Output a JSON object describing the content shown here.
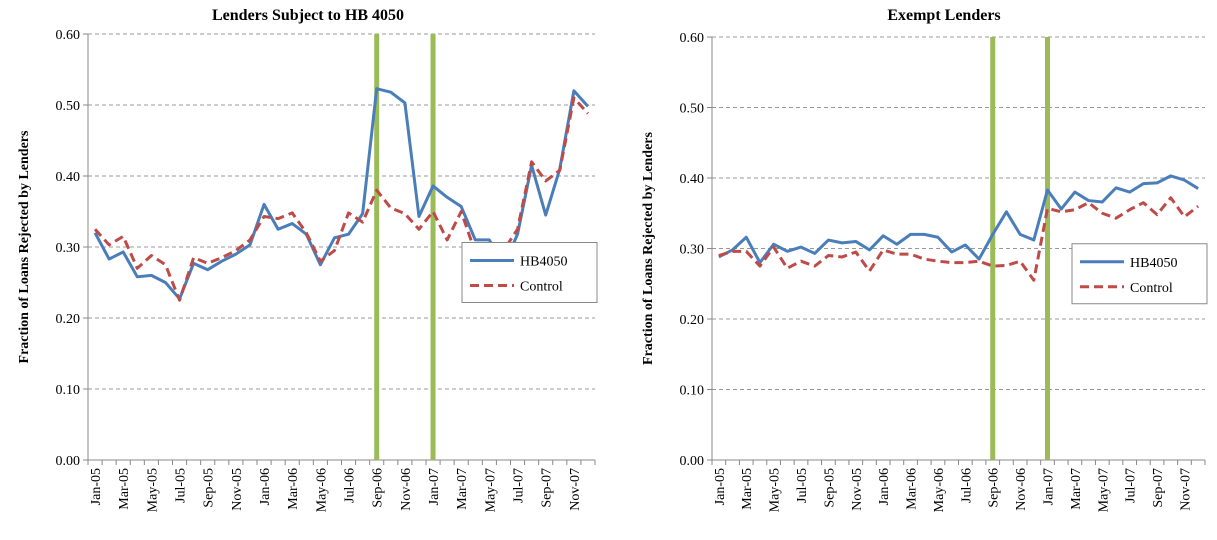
{
  "chart_data": [
    {
      "type": "line",
      "title": "Lenders Subject to HB 4050",
      "y_label": "Fraction of Loans Rejected by Lenders",
      "categories": [
        "Jan-05",
        null,
        "Mar-05",
        null,
        "May-05",
        null,
        "Jul-05",
        null,
        "Sep-05",
        null,
        "Nov-05",
        null,
        "Jan-06",
        null,
        "Mar-06",
        null,
        "May-06",
        null,
        "Jul-06",
        null,
        "Sep-06",
        null,
        "Nov-06",
        null,
        "Jan-07",
        null,
        "Mar-07",
        null,
        "May-07",
        null,
        "Jul-07",
        null,
        "Sep-07",
        null,
        "Nov-07",
        null
      ],
      "series": [
        {
          "name": "HB4050",
          "color": "#4a7ebb",
          "dash": false,
          "values": [
            0.32,
            0.283,
            0.293,
            0.258,
            0.26,
            0.25,
            0.227,
            0.277,
            0.268,
            0.28,
            0.29,
            0.303,
            0.36,
            0.325,
            0.333,
            0.318,
            0.275,
            0.313,
            0.318,
            0.347,
            0.523,
            0.518,
            0.503,
            0.343,
            0.386,
            0.37,
            0.357,
            0.31,
            0.31,
            0.273,
            0.318,
            0.415,
            0.345,
            0.41,
            0.52,
            0.498
          ]
        },
        {
          "name": "Control",
          "color": "#be4b48",
          "dash": true,
          "values": [
            0.325,
            0.303,
            0.315,
            0.27,
            0.288,
            0.275,
            0.225,
            0.285,
            0.277,
            0.285,
            0.295,
            0.31,
            0.343,
            0.34,
            0.348,
            0.32,
            0.28,
            0.295,
            0.348,
            0.335,
            0.38,
            0.355,
            0.347,
            0.325,
            0.35,
            0.31,
            0.35,
            0.292,
            0.295,
            0.295,
            0.325,
            0.42,
            0.393,
            0.408,
            0.51,
            0.488
          ]
        }
      ],
      "event_lines": [
        20,
        24
      ],
      "event_color": "#9bbb59",
      "ylim": [
        0,
        0.6
      ],
      "yticks": [
        {
          "value": 0,
          "label": "0.00"
        },
        {
          "value": 0.1,
          "label": "0.10"
        },
        {
          "value": 0.2,
          "label": "0.20"
        },
        {
          "value": 0.3,
          "label": "0.30"
        },
        {
          "value": 0.4,
          "label": "0.40"
        },
        {
          "value": 0.5,
          "label": "0.50"
        },
        {
          "value": 0.6,
          "label": "0.60"
        }
      ],
      "grid": true,
      "legend": "right"
    },
    {
      "type": "line",
      "title": "Exempt Lenders",
      "y_label": "Fraction of Loans Rejected by Lenders",
      "categories": [
        "Jan-05",
        null,
        "Mar-05",
        null,
        "May-05",
        null,
        "Jul-05",
        null,
        "Sep-05",
        null,
        "Nov-05",
        null,
        "Jan-06",
        null,
        "Mar-06",
        null,
        "May-06",
        null,
        "Jul-06",
        null,
        "Sep-06",
        null,
        "Nov-06",
        null,
        "Jan-07",
        null,
        "Mar-07",
        null,
        "May-07",
        null,
        "Jul-07",
        null,
        "Sep-07",
        null,
        "Nov-07",
        null
      ],
      "series": [
        {
          "name": "HB4050",
          "color": "#4a7ebb",
          "dash": false,
          "values": [
            0.288,
            0.298,
            0.316,
            0.28,
            0.306,
            0.296,
            0.302,
            0.293,
            0.312,
            0.308,
            0.31,
            0.298,
            0.318,
            0.306,
            0.32,
            0.32,
            0.316,
            0.295,
            0.305,
            0.285,
            0.32,
            0.352,
            0.32,
            0.312,
            0.383,
            0.356,
            0.38,
            0.368,
            0.366,
            0.386,
            0.38,
            0.392,
            0.393,
            0.403,
            0.397,
            0.385
          ]
        },
        {
          "name": "Control",
          "color": "#be4b48",
          "dash": true,
          "values": [
            0.29,
            0.296,
            0.296,
            0.275,
            0.302,
            0.272,
            0.282,
            0.275,
            0.29,
            0.288,
            0.295,
            0.268,
            0.298,
            0.292,
            0.292,
            0.285,
            0.282,
            0.28,
            0.28,
            0.282,
            0.275,
            0.276,
            0.282,
            0.255,
            0.357,
            0.352,
            0.355,
            0.365,
            0.35,
            0.343,
            0.355,
            0.365,
            0.348,
            0.372,
            0.345,
            0.36
          ]
        }
      ],
      "event_lines": [
        20,
        24
      ],
      "event_color": "#9bbb59",
      "ylim": [
        0,
        0.6
      ],
      "yticks": [
        {
          "value": 0,
          "label": "0.00"
        },
        {
          "value": 0.1,
          "label": "0.10"
        },
        {
          "value": 0.2,
          "label": "0.20"
        },
        {
          "value": 0.3,
          "label": "0.30"
        },
        {
          "value": 0.4,
          "label": "0.40"
        },
        {
          "value": 0.5,
          "label": "0.50"
        },
        {
          "value": 0.6,
          "label": "0.60"
        }
      ],
      "grid": true,
      "legend": "right"
    }
  ]
}
